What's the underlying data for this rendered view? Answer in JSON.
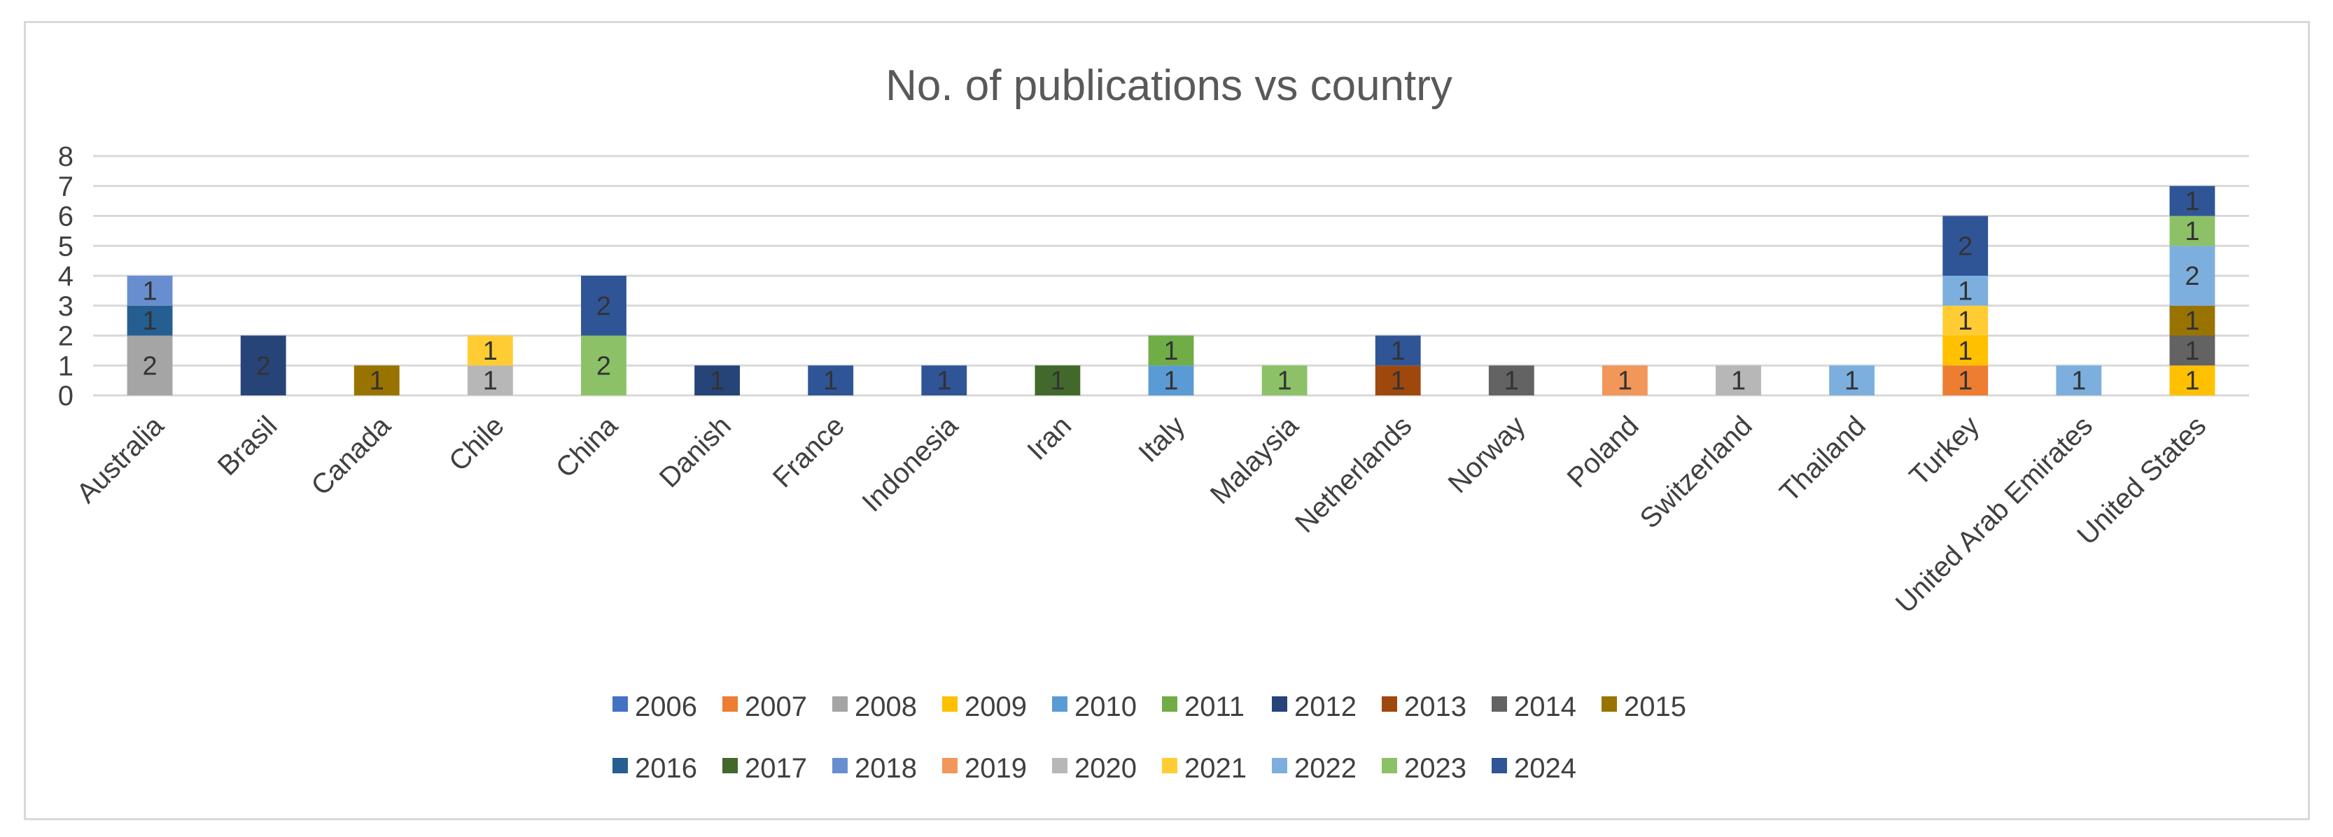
{
  "chart_data": {
    "type": "bar",
    "stacked": true,
    "title": "No. of publications vs country",
    "xlabel": "",
    "ylabel": "",
    "ylim": [
      0,
      8
    ],
    "yticks": [
      0,
      1,
      2,
      3,
      4,
      5,
      6,
      7,
      8
    ],
    "grid": true,
    "legend_position": "bottom",
    "categories": [
      "Australia",
      "Brasil",
      "Canada",
      "Chile",
      "China",
      "Danish",
      "France",
      "Indonesia",
      "Iran",
      "Italy",
      "Malaysia",
      "Netherlands",
      "Norway",
      "Poland",
      "Switzerland",
      "Thailand",
      "Turkey",
      "United Arab Emirates",
      "United States"
    ],
    "series": [
      {
        "name": "2006",
        "color": "#4472C4",
        "values": [
          null,
          null,
          null,
          null,
          null,
          null,
          null,
          null,
          null,
          null,
          null,
          null,
          null,
          null,
          null,
          null,
          null,
          null,
          null
        ]
      },
      {
        "name": "2007",
        "color": "#ED7D31",
        "values": [
          null,
          null,
          null,
          null,
          null,
          null,
          null,
          null,
          null,
          null,
          null,
          null,
          null,
          null,
          null,
          null,
          1,
          null,
          null
        ]
      },
      {
        "name": "2008",
        "color": "#A5A5A5",
        "values": [
          2,
          null,
          null,
          null,
          null,
          null,
          null,
          null,
          null,
          null,
          null,
          null,
          null,
          null,
          null,
          null,
          null,
          null,
          null
        ]
      },
      {
        "name": "2009",
        "color": "#FFC000",
        "values": [
          null,
          null,
          null,
          null,
          null,
          null,
          null,
          null,
          null,
          null,
          null,
          null,
          null,
          null,
          null,
          null,
          1,
          null,
          1
        ]
      },
      {
        "name": "2010",
        "color": "#5B9BD5",
        "values": [
          null,
          null,
          null,
          null,
          null,
          null,
          null,
          null,
          null,
          1,
          null,
          null,
          null,
          null,
          null,
          null,
          null,
          null,
          null
        ]
      },
      {
        "name": "2011",
        "color": "#70AD47",
        "values": [
          null,
          null,
          null,
          null,
          null,
          null,
          null,
          null,
          null,
          1,
          null,
          null,
          null,
          null,
          null,
          null,
          null,
          null,
          null
        ]
      },
      {
        "name": "2012",
        "color": "#264478",
        "values": [
          null,
          2,
          null,
          null,
          null,
          1,
          null,
          null,
          null,
          null,
          null,
          null,
          null,
          null,
          null,
          null,
          null,
          null,
          null
        ]
      },
      {
        "name": "2013",
        "color": "#9E480E",
        "values": [
          null,
          null,
          null,
          null,
          null,
          null,
          null,
          null,
          null,
          null,
          null,
          1,
          null,
          null,
          null,
          null,
          null,
          null,
          null
        ]
      },
      {
        "name": "2014",
        "color": "#636363",
        "values": [
          null,
          null,
          null,
          null,
          null,
          null,
          null,
          null,
          null,
          null,
          null,
          null,
          1,
          null,
          null,
          null,
          null,
          null,
          1
        ]
      },
      {
        "name": "2015",
        "color": "#997300",
        "values": [
          null,
          null,
          1,
          null,
          null,
          null,
          null,
          null,
          null,
          null,
          null,
          null,
          null,
          null,
          null,
          null,
          null,
          null,
          1
        ]
      },
      {
        "name": "2016",
        "color": "#255E91",
        "values": [
          1,
          null,
          null,
          null,
          null,
          null,
          null,
          null,
          null,
          null,
          null,
          null,
          null,
          null,
          null,
          null,
          null,
          null,
          null
        ]
      },
      {
        "name": "2017",
        "color": "#43682B",
        "values": [
          null,
          null,
          null,
          null,
          null,
          null,
          null,
          null,
          1,
          null,
          null,
          null,
          null,
          null,
          null,
          null,
          null,
          null,
          null
        ]
      },
      {
        "name": "2018",
        "color": "#698ED0",
        "values": [
          1,
          null,
          null,
          null,
          null,
          null,
          null,
          null,
          null,
          null,
          null,
          null,
          null,
          null,
          null,
          null,
          null,
          null,
          null
        ]
      },
      {
        "name": "2019",
        "color": "#F1975A",
        "values": [
          null,
          null,
          null,
          null,
          null,
          null,
          null,
          null,
          null,
          null,
          null,
          null,
          null,
          1,
          null,
          null,
          null,
          null,
          null
        ]
      },
      {
        "name": "2020",
        "color": "#B7B7B7",
        "values": [
          null,
          null,
          null,
          1,
          null,
          null,
          null,
          null,
          null,
          null,
          null,
          null,
          null,
          null,
          1,
          null,
          null,
          null,
          null
        ]
      },
      {
        "name": "2021",
        "color": "#FFCD33",
        "values": [
          null,
          null,
          null,
          1,
          null,
          null,
          null,
          null,
          null,
          null,
          null,
          null,
          null,
          null,
          null,
          null,
          1,
          null,
          null
        ]
      },
      {
        "name": "2022",
        "color": "#7CAFDD",
        "values": [
          null,
          null,
          null,
          null,
          null,
          null,
          null,
          null,
          null,
          null,
          null,
          null,
          null,
          null,
          null,
          1,
          1,
          1,
          2
        ]
      },
      {
        "name": "2023",
        "color": "#8CC168",
        "values": [
          null,
          null,
          null,
          null,
          2,
          null,
          null,
          null,
          null,
          null,
          1,
          null,
          null,
          null,
          null,
          null,
          null,
          null,
          1
        ]
      },
      {
        "name": "2024",
        "color": "#2F5597",
        "values": [
          null,
          null,
          null,
          null,
          2,
          null,
          1,
          1,
          null,
          null,
          null,
          1,
          null,
          null,
          null,
          null,
          2,
          null,
          1
        ]
      }
    ]
  }
}
